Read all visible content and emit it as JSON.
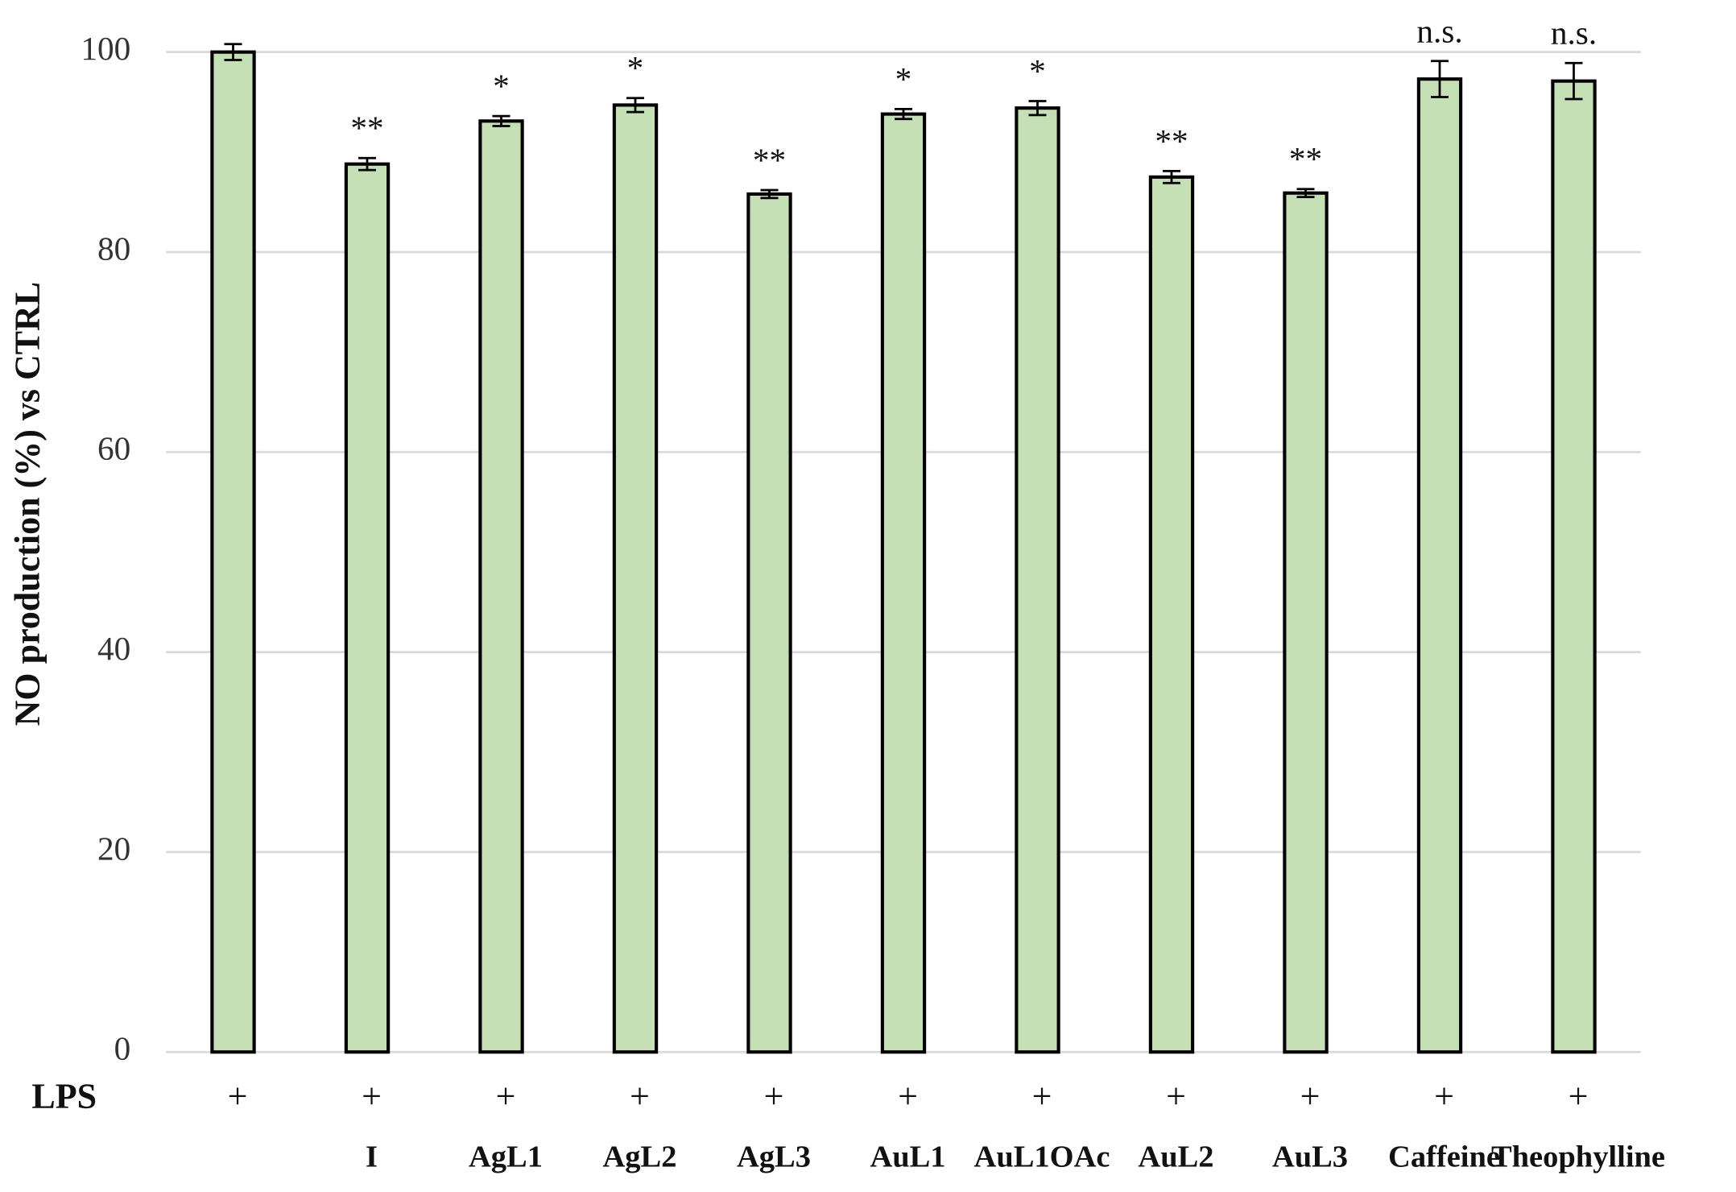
{
  "chart_data": {
    "type": "bar",
    "y_label": "NO production (%) vs CTRL",
    "categories": [
      null,
      "I",
      "AgL1",
      "AgL2",
      "AgL3",
      "AuL1",
      "AuL1OAc",
      "AuL2",
      "AuL3",
      "Caffeine",
      "Theophylline"
    ],
    "values": [
      100,
      88.8,
      93.1,
      94.7,
      85.8,
      93.8,
      94.4,
      87.5,
      85.9,
      97.3,
      97.1
    ],
    "errors": [
      0.8,
      0.6,
      0.5,
      0.7,
      0.4,
      0.5,
      0.7,
      0.6,
      0.4,
      1.8,
      1.8
    ],
    "significance": [
      null,
      "**",
      "*",
      "*",
      "**",
      "*",
      "*",
      "**",
      "**",
      "n.s.",
      "n.s."
    ],
    "treatment_row": {
      "label": "LPS",
      "marks": [
        "+",
        "+",
        "+",
        "+",
        "+",
        "+",
        "+",
        "+",
        "+",
        "+",
        "+"
      ]
    },
    "color": "#c5e0b4",
    "edge_color": "#000000",
    "ylim": [
      0,
      100
    ],
    "yticks": [
      0,
      20,
      40,
      60,
      80,
      100
    ],
    "grid": true
  }
}
